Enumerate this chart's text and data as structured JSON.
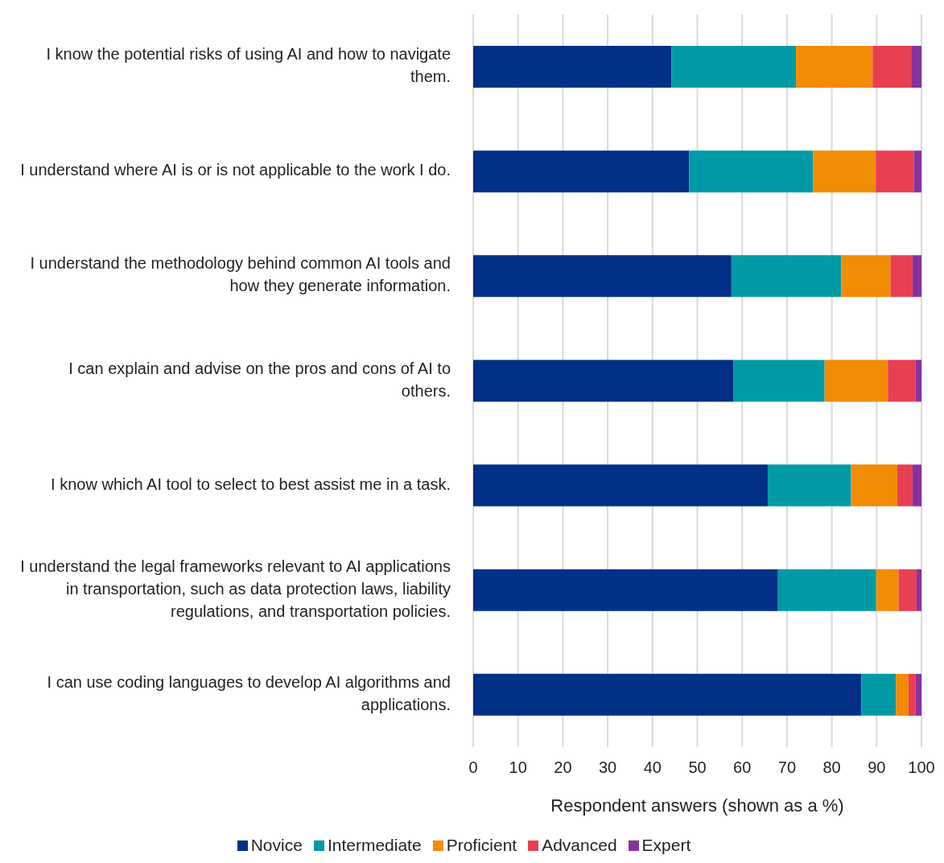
{
  "chart_data": {
    "type": "bar",
    "orientation": "horizontal",
    "stacked": true,
    "xlabel": "Respondent answers (shown as a %)",
    "categories": [
      "I know the potential risks of using AI and how to navigate them.",
      "I understand where AI is or is not applicable to the work I do.",
      "I understand the methodology behind common AI tools and how they generate information.",
      "I can explain and advise on the pros and cons of AI to others.",
      "I know which AI tool to select to best assist me in a task.",
      "I understand the legal frameworks relevant to AI applications in transportation, such as data protection laws, liability regulations, and transportation policies.",
      "I can use coding languages to develop AI algorithms and applications."
    ],
    "series": [
      {
        "name": "Novice",
        "color": "#003087",
        "values": [
          44.2,
          48.2,
          57.6,
          58.0,
          65.7,
          68.0,
          86.6
        ]
      },
      {
        "name": "Intermediate",
        "color": "#009aa6",
        "values": [
          27.8,
          27.6,
          24.5,
          20.4,
          18.6,
          21.9,
          7.7
        ]
      },
      {
        "name": "Proficient",
        "color": "#f28c02",
        "values": [
          17.1,
          14.0,
          11.0,
          14.1,
          10.3,
          5.0,
          2.8
        ]
      },
      {
        "name": "Advanced",
        "color": "#e83f52",
        "values": [
          8.6,
          8.5,
          4.9,
          6.2,
          3.4,
          4.0,
          1.6
        ]
      },
      {
        "name": "Expert",
        "color": "#87329c",
        "values": [
          2.3,
          1.7,
          2.0,
          1.3,
          2.0,
          1.1,
          1.3
        ]
      }
    ],
    "xlim": [
      0,
      100
    ],
    "xticks": [
      0,
      10,
      20,
      30,
      40,
      50,
      60,
      70,
      80,
      90,
      100
    ],
    "grid": "x",
    "legend": "bottom"
  }
}
